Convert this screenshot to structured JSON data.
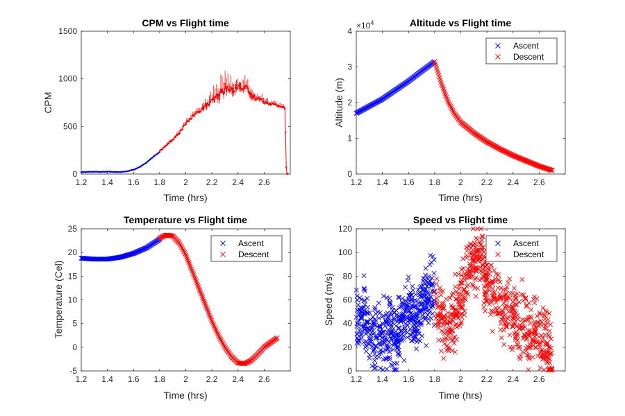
{
  "figure": {
    "colors": {
      "ascent": "#0000ff",
      "descent": "#ff0000",
      "axis": "#262626"
    }
  },
  "chart_data": [
    {
      "type": "line",
      "title": "CPM vs Flight time",
      "xlabel": "Time (hrs)",
      "ylabel": "CPM",
      "xlim": [
        1.2,
        2.8
      ],
      "ylim": [
        0,
        1500
      ],
      "xticks": [
        "1.2",
        "1.4",
        "1.6",
        "1.8",
        "2",
        "2.2",
        "2.4",
        "2.6"
      ],
      "yticks": [
        "0",
        "500",
        "1000",
        "1500"
      ],
      "grid": false,
      "legend": null,
      "series": [
        {
          "color": "#0000ff",
          "marker": "point-errorbar",
          "x": [
            1.2,
            1.25,
            1.3,
            1.35,
            1.4,
            1.45,
            1.5,
            1.55,
            1.6,
            1.65,
            1.7,
            1.75,
            1.8
          ],
          "y": [
            20,
            22,
            25,
            22,
            25,
            22,
            22,
            28,
            45,
            75,
            120,
            180,
            230
          ]
        },
        {
          "color": "#ff0000",
          "marker": "point-errorbar",
          "x": [
            1.8,
            1.85,
            1.9,
            1.95,
            2.0,
            2.05,
            2.1,
            2.15,
            2.2,
            2.25,
            2.3,
            2.35,
            2.4,
            2.45,
            2.5,
            2.55,
            2.6,
            2.65,
            2.7,
            2.75,
            2.76,
            2.77,
            2.78
          ],
          "y": [
            240,
            300,
            360,
            430,
            530,
            600,
            660,
            710,
            760,
            820,
            900,
            880,
            920,
            920,
            820,
            800,
            760,
            740,
            720,
            700,
            680,
            10,
            0
          ],
          "err": [
            20,
            25,
            30,
            35,
            40,
            45,
            60,
            80,
            120,
            160,
            160,
            130,
            120,
            140,
            100,
            80,
            60,
            50,
            40,
            40,
            40,
            0,
            0
          ]
        }
      ]
    },
    {
      "type": "scatter",
      "title": "Altitude vs Flight time",
      "xlabel": "Time (hrs)",
      "ylabel": "Altitude (m)",
      "exponent_label": "×10^4",
      "xlim": [
        1.2,
        2.8
      ],
      "ylim": [
        0,
        4
      ],
      "xticks": [
        "1.2",
        "1.4",
        "1.6",
        "1.8",
        "2",
        "2.2",
        "2.4",
        "2.6"
      ],
      "yticks": [
        "0",
        "1",
        "2",
        "3",
        "4"
      ],
      "grid": false,
      "legend": "top-right",
      "series": [
        {
          "name": "Ascent",
          "color": "#0000ff",
          "marker": "x",
          "x": [
            1.2,
            1.3,
            1.4,
            1.5,
            1.6,
            1.7,
            1.8
          ],
          "y": [
            1.7,
            1.9,
            2.1,
            2.35,
            2.6,
            2.88,
            3.15
          ]
        },
        {
          "name": "Descent",
          "color": "#ff0000",
          "marker": "x",
          "x": [
            1.8,
            1.85,
            1.9,
            1.95,
            2.0,
            2.1,
            2.2,
            2.3,
            2.4,
            2.5,
            2.6,
            2.7
          ],
          "y": [
            3.15,
            2.55,
            2.05,
            1.7,
            1.45,
            1.15,
            0.9,
            0.7,
            0.52,
            0.37,
            0.22,
            0.1
          ]
        }
      ]
    },
    {
      "type": "scatter",
      "title": "Temperature vs Flight time",
      "xlabel": "Time (hrs)",
      "ylabel": "Temperature (Cel)",
      "xlim": [
        1.2,
        2.8
      ],
      "ylim": [
        -5,
        25
      ],
      "xticks": [
        "1.2",
        "1.4",
        "1.6",
        "1.8",
        "2",
        "2.2",
        "2.4",
        "2.6"
      ],
      "yticks": [
        "-5",
        "0",
        "5",
        "10",
        "15",
        "20",
        "25"
      ],
      "grid": false,
      "legend": "top-right",
      "series": [
        {
          "name": "Ascent",
          "color": "#0000ff",
          "marker": "x",
          "x": [
            1.2,
            1.3,
            1.4,
            1.5,
            1.6,
            1.7,
            1.8
          ],
          "y": [
            18.8,
            18.6,
            18.6,
            19.0,
            19.8,
            21.0,
            22.8
          ]
        },
        {
          "name": "Descent",
          "color": "#ff0000",
          "marker": "x",
          "x": [
            1.8,
            1.85,
            1.9,
            1.95,
            2.0,
            2.05,
            2.1,
            2.15,
            2.2,
            2.25,
            2.3,
            2.35,
            2.4,
            2.45,
            2.5,
            2.55,
            2.6,
            2.65,
            2.7
          ],
          "y": [
            23.0,
            23.7,
            23.5,
            22.0,
            19.5,
            16.0,
            12.5,
            9.0,
            5.5,
            2.5,
            0.0,
            -2.0,
            -3.3,
            -3.5,
            -2.8,
            -1.5,
            0.0,
            1.0,
            2.0
          ]
        }
      ]
    },
    {
      "type": "scatter",
      "title": "Speed vs Flight time",
      "xlabel": "Time (hrs)",
      "ylabel": "Speed (m/s)",
      "xlim": [
        1.2,
        2.8
      ],
      "ylim": [
        0,
        120
      ],
      "xticks": [
        "1.2",
        "1.4",
        "1.6",
        "1.8",
        "2",
        "2.2",
        "2.4",
        "2.6"
      ],
      "yticks": [
        "0",
        "20",
        "40",
        "60",
        "80",
        "100",
        "120"
      ],
      "grid": false,
      "legend": "top-right",
      "series": [
        {
          "name": "Ascent",
          "color": "#0000ff",
          "marker": "x",
          "x": [
            1.2,
            1.25,
            1.3,
            1.35,
            1.4,
            1.45,
            1.5,
            1.55,
            1.6,
            1.65,
            1.7,
            1.75,
            1.8
          ],
          "y": [
            38,
            48,
            32,
            30,
            28,
            35,
            30,
            40,
            55,
            45,
            55,
            60,
            75
          ]
        },
        {
          "name": "Descent",
          "color": "#ff0000",
          "marker": "x",
          "x": [
            1.8,
            1.85,
            1.9,
            1.95,
            2.0,
            2.05,
            2.1,
            2.15,
            2.2,
            2.25,
            2.3,
            2.35,
            2.4,
            2.45,
            2.5,
            2.55,
            2.6,
            2.65,
            2.7
          ],
          "y": [
            55,
            45,
            30,
            45,
            60,
            80,
            95,
            100,
            75,
            65,
            60,
            55,
            45,
            40,
            35,
            30,
            28,
            25,
            12
          ]
        }
      ]
    }
  ]
}
